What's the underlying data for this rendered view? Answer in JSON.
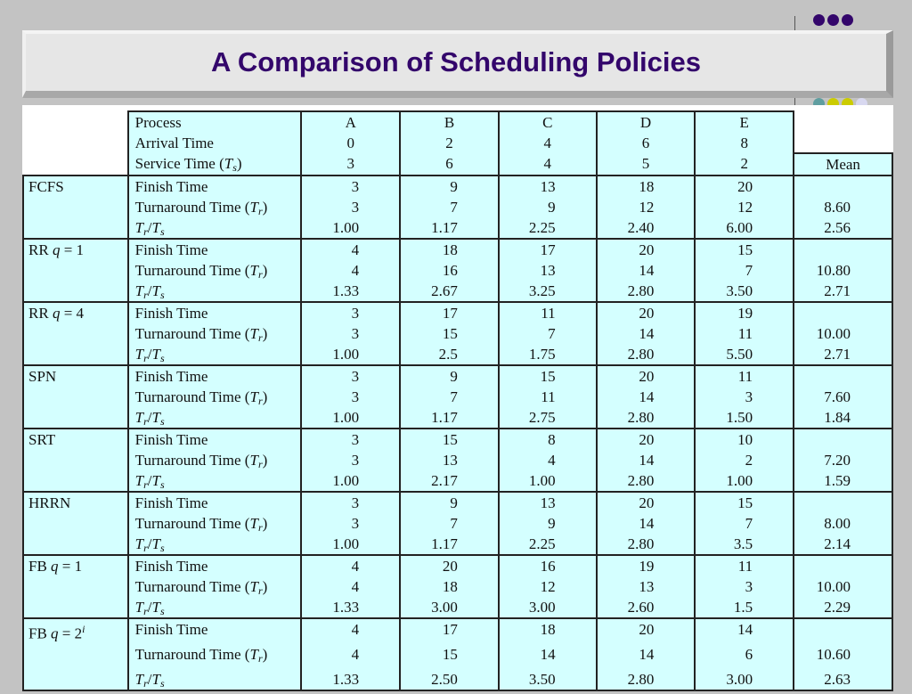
{
  "slide": {
    "title": "A Comparison of Scheduling Policies",
    "decor": {
      "top_dots": [
        "#33066b",
        "#33066b",
        "#33066b"
      ],
      "bottom_dots": [
        "#5f9ea0",
        "#cccc00",
        "#cccc00",
        "#d8d8f0"
      ]
    },
    "colors": {
      "cell_bg": "#d4ffff",
      "title": "#33066b"
    }
  },
  "table": {
    "header": {
      "process_label": "Process",
      "arrival_label": "Arrival Time",
      "service_label": "Service Time",
      "service_sym": "T",
      "service_sub": "s",
      "processes": [
        "A",
        "B",
        "C",
        "D",
        "E"
      ],
      "arrival": [
        "0",
        "2",
        "4",
        "6",
        "8"
      ],
      "service": [
        "3",
        "6",
        "4",
        "5",
        "2"
      ],
      "mean_label": "Mean"
    },
    "row_labels": {
      "finish": "Finish Time",
      "turnaround": "Turnaround Time",
      "turnaround_sym": "T",
      "turnaround_sub": "r",
      "ratio_num": "T",
      "ratio_num_sub": "r",
      "ratio_den": "T",
      "ratio_den_sub": "s"
    },
    "policies": [
      {
        "name": "FCFS",
        "q": "",
        "sup": "",
        "finish": [
          "3",
          "9",
          "13",
          "18",
          "20"
        ],
        "turnaround": [
          "3",
          "7",
          "9",
          "12",
          "12"
        ],
        "turnaround_mean": "8.60",
        "ratio": [
          "1.00",
          "1.17",
          "2.25",
          "2.40",
          "6.00"
        ],
        "ratio_mean": "2.56"
      },
      {
        "name": "RR",
        "q": "1",
        "sup": "",
        "finish": [
          "4",
          "18",
          "17",
          "20",
          "15"
        ],
        "turnaround": [
          "4",
          "16",
          "13",
          "14",
          "7"
        ],
        "turnaround_mean": "10.80",
        "ratio": [
          "1.33",
          "2.67",
          "3.25",
          "2.80",
          "3.50"
        ],
        "ratio_mean": "2.71"
      },
      {
        "name": "RR",
        "q": "4",
        "sup": "",
        "finish": [
          "3",
          "17",
          "11",
          "20",
          "19"
        ],
        "turnaround": [
          "3",
          "15",
          "7",
          "14",
          "11"
        ],
        "turnaround_mean": "10.00",
        "ratio": [
          "1.00",
          "2.5",
          "1.75",
          "2.80",
          "5.50"
        ],
        "ratio_mean": "2.71"
      },
      {
        "name": "SPN",
        "q": "",
        "sup": "",
        "finish": [
          "3",
          "9",
          "15",
          "20",
          "11"
        ],
        "turnaround": [
          "3",
          "7",
          "11",
          "14",
          "3"
        ],
        "turnaround_mean": "7.60",
        "ratio": [
          "1.00",
          "1.17",
          "2.75",
          "2.80",
          "1.50"
        ],
        "ratio_mean": "1.84"
      },
      {
        "name": "SRT",
        "q": "",
        "sup": "",
        "finish": [
          "3",
          "15",
          "8",
          "20",
          "10"
        ],
        "turnaround": [
          "3",
          "13",
          "4",
          "14",
          "2"
        ],
        "turnaround_mean": "7.20",
        "ratio": [
          "1.00",
          "2.17",
          "1.00",
          "2.80",
          "1.00"
        ],
        "ratio_mean": "1.59"
      },
      {
        "name": "HRRN",
        "q": "",
        "sup": "",
        "finish": [
          "3",
          "9",
          "13",
          "20",
          "15"
        ],
        "turnaround": [
          "3",
          "7",
          "9",
          "14",
          "7"
        ],
        "turnaround_mean": "8.00",
        "ratio": [
          "1.00",
          "1.17",
          "2.25",
          "2.80",
          "3.5"
        ],
        "ratio_mean": "2.14"
      },
      {
        "name": "FB",
        "q": "1",
        "sup": "",
        "finish": [
          "4",
          "20",
          "16",
          "19",
          "11"
        ],
        "turnaround": [
          "4",
          "18",
          "12",
          "13",
          "3"
        ],
        "turnaround_mean": "10.00",
        "ratio": [
          "1.33",
          "3.00",
          "3.00",
          "2.60",
          "1.5"
        ],
        "ratio_mean": "2.29"
      },
      {
        "name": "FB",
        "q": "2",
        "sup": "i",
        "finish": [
          "4",
          "17",
          "18",
          "20",
          "14"
        ],
        "turnaround": [
          "4",
          "15",
          "14",
          "14",
          "6"
        ],
        "turnaround_mean": "10.60",
        "ratio": [
          "1.33",
          "2.50",
          "3.50",
          "2.80",
          "3.00"
        ],
        "ratio_mean": "2.63"
      }
    ]
  }
}
